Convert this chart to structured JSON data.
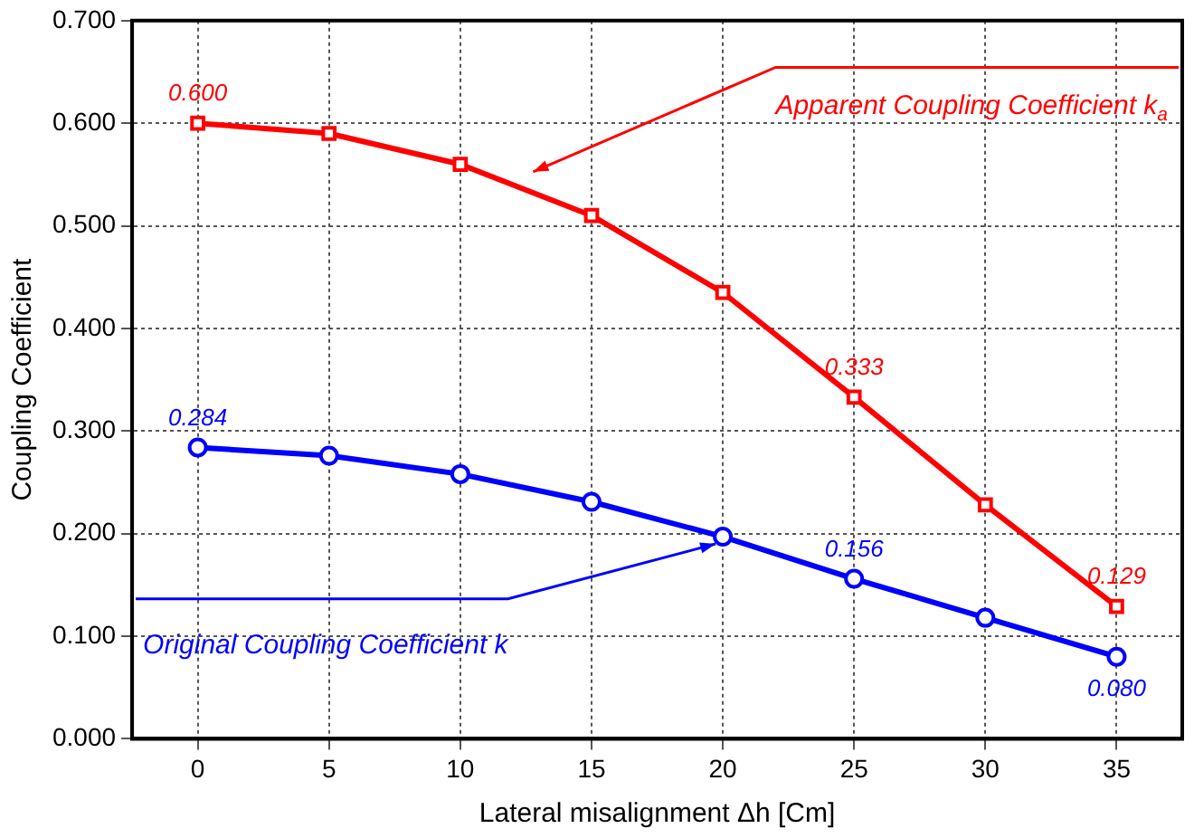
{
  "chart_data": {
    "type": "line",
    "xlabel": "Lateral misalignment Δh [Cm]",
    "ylabel": "Coupling Coefficient",
    "x": [
      0,
      5,
      10,
      15,
      20,
      25,
      30,
      35
    ],
    "series": [
      {
        "name": "Apparent Coupling Coefficient k$_{a}$",
        "color": "#ff0000",
        "marker": "square",
        "values": [
          0.6,
          0.59,
          0.56,
          0.51,
          0.435,
          0.333,
          0.228,
          0.129
        ],
        "value_labels": [
          "0.600",
          null,
          null,
          null,
          null,
          "0.333",
          null,
          "0.129"
        ]
      },
      {
        "name": "Original Coupling Coefficient k",
        "color": "#0000ff",
        "marker": "circle",
        "values": [
          0.284,
          0.276,
          0.258,
          0.231,
          0.197,
          0.156,
          0.118,
          0.08
        ],
        "value_labels": [
          "0.284",
          null,
          null,
          null,
          null,
          "0.156",
          null,
          "0.080"
        ]
      }
    ],
    "xlim": [
      -2.5,
      37.5
    ],
    "xticks": [
      0,
      5,
      10,
      15,
      20,
      25,
      30,
      35
    ],
    "ylim": [
      0,
      0.7
    ],
    "yticks": [
      {
        "value": 0,
        "label": "0.000"
      },
      {
        "value": 0.1,
        "label": "0.100"
      },
      {
        "value": 0.2,
        "label": "0.200"
      },
      {
        "value": 0.3,
        "label": "0.300"
      },
      {
        "value": 0.4,
        "label": "0.400"
      },
      {
        "value": 0.5,
        "label": "0.500"
      },
      {
        "value": 0.6,
        "label": "0.600"
      },
      {
        "value": 0.7,
        "label": "0.700"
      }
    ],
    "grid": true,
    "legend": false,
    "line_style": "solid"
  }
}
